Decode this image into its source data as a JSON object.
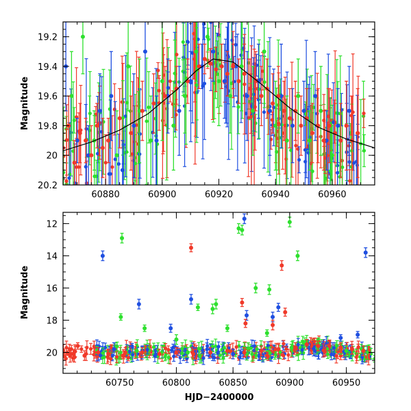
{
  "chart_data": [
    {
      "type": "scatter",
      "panel": "top",
      "title": "",
      "xlabel": "",
      "ylabel": "Magnitude",
      "xlim": [
        60865,
        60975
      ],
      "ylim": [
        19.1,
        20.2
      ],
      "y_inverted": true,
      "x_ticks": [
        60880,
        60900,
        60920,
        60940,
        60960
      ],
      "x_tick_labels": [
        "60880",
        "60900",
        "60920",
        "60940",
        "60960"
      ],
      "y_ticks": [
        19.2,
        19.4,
        19.6,
        19.8,
        20.0,
        20.2
      ],
      "y_tick_labels": [
        "19.2",
        "19.4",
        "19.6",
        "19.8",
        "20",
        "20.2"
      ],
      "model_curve": {
        "description": "smooth light-curve fit",
        "x": [
          60865,
          60875,
          60885,
          60895,
          60905,
          60912,
          60918,
          60925,
          60935,
          60945,
          60955,
          60965,
          60975
        ],
        "y": [
          19.97,
          19.91,
          19.83,
          19.72,
          19.56,
          19.43,
          19.35,
          19.37,
          19.52,
          19.68,
          19.81,
          19.89,
          19.95
        ]
      },
      "series": [
        {
          "name": "blue",
          "color": "#1f4fe0",
          "points": [
            [
              60866,
              19.4,
              0.3
            ],
            [
              60870,
              19.9,
              0.15
            ],
            [
              60874,
              20.0,
              0.2
            ],
            [
              60878,
              19.7,
              0.25
            ],
            [
              60882,
              19.6,
              0.3
            ],
            [
              60886,
              20.1,
              0.2
            ],
            [
              60890,
              19.8,
              0.35
            ],
            [
              60894,
              19.3,
              0.4
            ],
            [
              60898,
              19.9,
              0.3
            ],
            [
              60902,
              19.6,
              0.25
            ],
            [
              60906,
              19.7,
              0.3
            ],
            [
              60910,
              19.5,
              0.2
            ],
            [
              60914,
              19.4,
              0.15
            ],
            [
              60918,
              19.3,
              0.2
            ],
            [
              60922,
              19.5,
              0.25
            ],
            [
              60926,
              19.4,
              0.2
            ],
            [
              60930,
              19.6,
              0.3
            ],
            [
              60934,
              19.5,
              0.25
            ],
            [
              60938,
              19.7,
              0.3
            ],
            [
              60942,
              19.6,
              0.35
            ],
            [
              60946,
              19.8,
              0.25
            ],
            [
              60950,
              19.7,
              0.2
            ],
            [
              60954,
              19.6,
              0.3
            ],
            [
              60958,
              19.9,
              0.2
            ],
            [
              60962,
              19.8,
              0.25
            ],
            [
              60966,
              19.7,
              0.3
            ]
          ]
        },
        {
          "name": "green",
          "color": "#2ee02e",
          "points": [
            [
              60868,
              19.6,
              0.3
            ],
            [
              60872,
              19.2,
              0.25
            ],
            [
              60876,
              19.9,
              0.2
            ],
            [
              60884,
              20.0,
              0.3
            ],
            [
              60888,
              19.4,
              0.3
            ],
            [
              60892,
              19.7,
              0.35
            ],
            [
              60896,
              19.9,
              0.3
            ],
            [
              60900,
              19.5,
              0.4
            ],
            [
              60904,
              19.8,
              0.3
            ],
            [
              60908,
              19.6,
              0.25
            ],
            [
              60912,
              19.3,
              0.2
            ],
            [
              60916,
              19.2,
              0.2
            ],
            [
              60920,
              19.5,
              0.3
            ],
            [
              60924,
              19.6,
              0.25
            ],
            [
              60928,
              19.4,
              0.3
            ],
            [
              60932,
              19.7,
              0.3
            ],
            [
              60936,
              19.3,
              0.35
            ],
            [
              60940,
              19.8,
              0.3
            ],
            [
              60944,
              19.9,
              0.3
            ],
            [
              60948,
              19.6,
              0.25
            ],
            [
              60952,
              19.9,
              0.2
            ],
            [
              60956,
              19.7,
              0.3
            ],
            [
              60960,
              20.0,
              0.2
            ]
          ]
        },
        {
          "name": "red",
          "color": "#f03a2a",
          "points": [
            [
              60865,
              19.95,
              0.15
            ],
            [
              60867,
              19.8,
              0.2
            ],
            [
              60869,
              20.05,
              0.15
            ],
            [
              60871,
              19.85,
              0.2
            ],
            [
              60873,
              19.9,
              0.15
            ],
            [
              60875,
              20.0,
              0.2
            ],
            [
              60877,
              19.8,
              0.15
            ],
            [
              60879,
              19.95,
              0.2
            ],
            [
              60881,
              19.9,
              0.15
            ],
            [
              60885,
              19.75,
              0.2
            ],
            [
              60889,
              19.85,
              0.25
            ],
            [
              60893,
              19.7,
              0.2
            ],
            [
              60897,
              19.65,
              0.2
            ],
            [
              60901,
              19.6,
              0.2
            ],
            [
              60905,
              19.55,
              0.15
            ],
            [
              60909,
              19.5,
              0.15
            ],
            [
              60913,
              19.4,
              0.15
            ],
            [
              60915,
              19.35,
              0.1
            ],
            [
              60917,
              19.38,
              0.1
            ],
            [
              60919,
              19.42,
              0.15
            ],
            [
              60921,
              19.4,
              0.15
            ],
            [
              60923,
              19.45,
              0.15
            ],
            [
              60925,
              19.4,
              0.15
            ],
            [
              60927,
              19.5,
              0.15
            ],
            [
              60929,
              19.45,
              0.2
            ],
            [
              60931,
              19.55,
              0.2
            ],
            [
              60933,
              19.5,
              0.2
            ],
            [
              60935,
              19.6,
              0.2
            ],
            [
              60937,
              19.55,
              0.2
            ],
            [
              60939,
              19.65,
              0.2
            ],
            [
              60941,
              19.6,
              0.2
            ],
            [
              60943,
              19.7,
              0.2
            ],
            [
              60945,
              19.75,
              0.2
            ],
            [
              60947,
              19.7,
              0.2
            ],
            [
              60949,
              19.8,
              0.2
            ],
            [
              60951,
              19.75,
              0.2
            ],
            [
              60953,
              19.85,
              0.2
            ],
            [
              60955,
              19.8,
              0.25
            ],
            [
              60957,
              19.9,
              0.2
            ],
            [
              60959,
              19.8,
              0.25
            ],
            [
              60961,
              19.85,
              0.2
            ],
            [
              60963,
              19.9,
              0.25
            ],
            [
              60965,
              19.8,
              0.3
            ],
            [
              60967,
              19.9,
              0.3
            ],
            [
              60969,
              19.85,
              0.3
            ]
          ]
        }
      ]
    },
    {
      "type": "scatter",
      "panel": "bottom",
      "title": "",
      "xlabel": "HJD−2400000",
      "ylabel": "Magnitude",
      "xlim": [
        60700,
        60975
      ],
      "ylim": [
        11.3,
        21.3
      ],
      "y_inverted": true,
      "x_ticks": [
        60750,
        60800,
        60850,
        60900,
        60950
      ],
      "x_tick_labels": [
        "60750",
        "60800",
        "60850",
        "60900",
        "60950"
      ],
      "y_ticks": [
        12,
        14,
        16,
        18,
        20
      ],
      "y_tick_labels": [
        "12",
        "14",
        "16",
        "18",
        "20"
      ],
      "series": [
        {
          "name": "blue",
          "color": "#1f4fe0",
          "points": [
            [
              60735,
              14.0,
              0.3
            ],
            [
              60767,
              17.0,
              0.3
            ],
            [
              60795,
              18.5,
              0.25
            ],
            [
              60813,
              16.7,
              0.3
            ],
            [
              60860,
              11.7,
              0.3
            ],
            [
              60862,
              17.7,
              0.3
            ],
            [
              60885,
              17.8,
              0.3
            ],
            [
              60890,
              17.2,
              0.25
            ],
            [
              60967,
              13.8,
              0.3
            ],
            [
              60745,
              19.8,
              0.4
            ],
            [
              60770,
              19.9,
              0.3
            ],
            [
              60800,
              20.0,
              0.3
            ],
            [
              60830,
              19.8,
              0.3
            ],
            [
              60850,
              20.1,
              0.3
            ],
            [
              60875,
              19.9,
              0.3
            ],
            [
              60905,
              19.7,
              0.3
            ],
            [
              60935,
              19.6,
              0.3
            ],
            [
              60955,
              19.8,
              0.3
            ],
            [
              60945,
              19.1,
              0.2
            ],
            [
              60960,
              18.9,
              0.2
            ]
          ]
        },
        {
          "name": "green",
          "color": "#2ee02e",
          "points": [
            [
              60752,
              12.9,
              0.3
            ],
            [
              60751,
              17.8,
              0.2
            ],
            [
              60772,
              18.5,
              0.2
            ],
            [
              60819,
              17.2,
              0.2
            ],
            [
              60832,
              17.3,
              0.3
            ],
            [
              60835,
              17.0,
              0.3
            ],
            [
              60855,
              12.3,
              0.3
            ],
            [
              60858,
              12.4,
              0.3
            ],
            [
              60870,
              16.0,
              0.3
            ],
            [
              60882,
              16.1,
              0.3
            ],
            [
              60900,
              11.9,
              0.3
            ],
            [
              60907,
              14.0,
              0.3
            ],
            [
              60800,
              19.2,
              0.3
            ],
            [
              60845,
              18.5,
              0.2
            ],
            [
              60880,
              18.8,
              0.2
            ],
            [
              60765,
              19.9,
              0.4
            ],
            [
              60810,
              20.0,
              0.3
            ],
            [
              60860,
              19.7,
              0.3
            ],
            [
              60925,
              19.5,
              0.3
            ],
            [
              60950,
              19.9,
              0.3
            ]
          ]
        },
        {
          "name": "red",
          "color": "#f03a2a",
          "points": [
            [
              60706,
              20.1,
              0.2
            ],
            [
              60710,
              20.3,
              0.3
            ],
            [
              60713,
              19.6,
              0.2
            ],
            [
              60719,
              20.2,
              0.3
            ],
            [
              60813,
              13.5,
              0.25
            ],
            [
              60858,
              16.9,
              0.25
            ],
            [
              60861,
              18.2,
              0.25
            ],
            [
              60893,
              14.6,
              0.3
            ],
            [
              60896,
              17.5,
              0.25
            ],
            [
              60885,
              18.3,
              0.3
            ],
            [
              60731,
              20.0,
              0.3
            ],
            [
              60740,
              20.1,
              0.3
            ],
            [
              60755,
              20.0,
              0.3
            ],
            [
              60770,
              20.0,
              0.3
            ],
            [
              60785,
              20.1,
              0.3
            ],
            [
              60800,
              20.0,
              0.3
            ],
            [
              60815,
              20.1,
              0.3
            ],
            [
              60830,
              20.0,
              0.3
            ],
            [
              60845,
              19.9,
              0.3
            ],
            [
              60860,
              20.0,
              0.3
            ],
            [
              60875,
              19.9,
              0.3
            ],
            [
              60890,
              19.8,
              0.3
            ],
            [
              60905,
              19.7,
              0.3
            ],
            [
              60915,
              19.5,
              0.3
            ],
            [
              60925,
              19.6,
              0.3
            ],
            [
              60935,
              19.6,
              0.3
            ],
            [
              60945,
              19.7,
              0.3
            ],
            [
              60955,
              19.8,
              0.3
            ],
            [
              60965,
              19.9,
              0.3
            ]
          ]
        }
      ]
    }
  ]
}
